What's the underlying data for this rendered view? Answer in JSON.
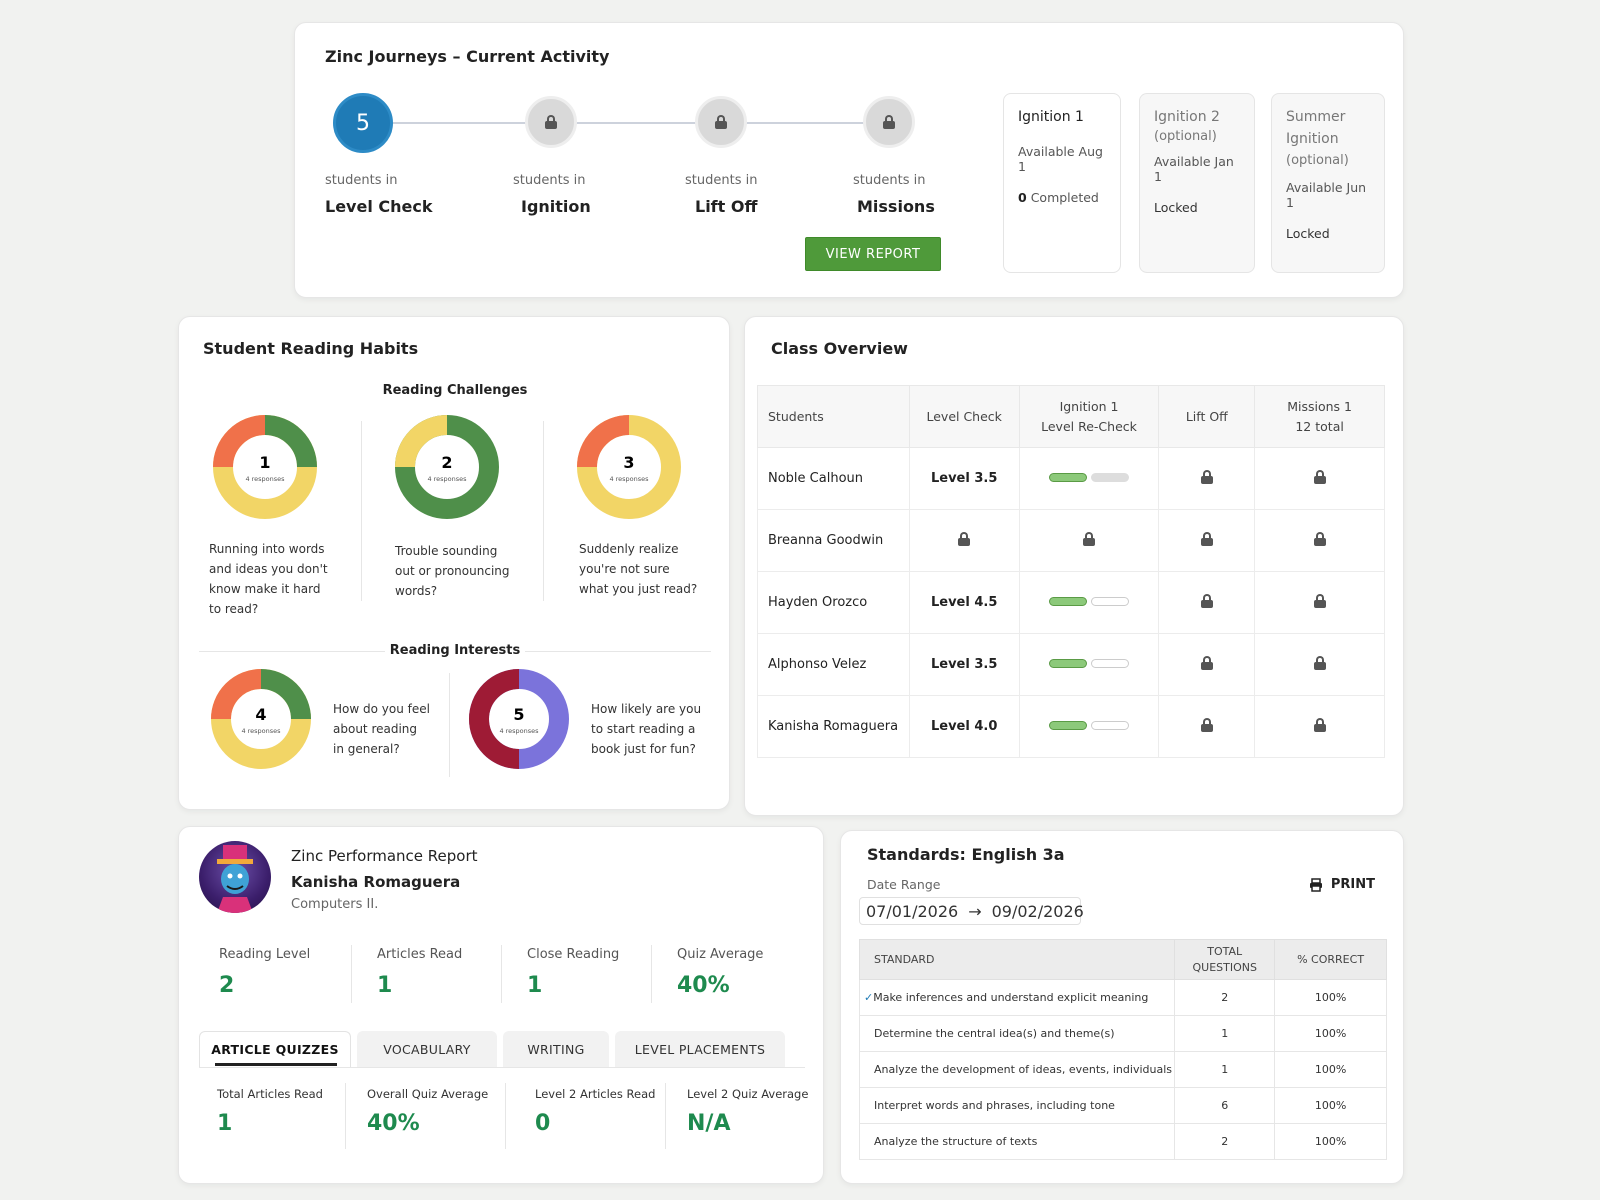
{
  "journeys": {
    "title": "Zinc Journeys – Current Activity",
    "steps": [
      {
        "count": "5",
        "sub": "students in",
        "name": "Level Check",
        "state": "active"
      },
      {
        "count": "",
        "sub": "students in",
        "name": "Ignition",
        "state": "locked"
      },
      {
        "count": "",
        "sub": "students in",
        "name": "Lift Off",
        "state": "locked"
      },
      {
        "count": "",
        "sub": "students in",
        "name": "Missions",
        "state": "locked"
      }
    ],
    "view_report_label": "VIEW REPORT",
    "ignitions": [
      {
        "title": "Ignition 1",
        "available": "Available Aug 1",
        "status_count": "0",
        "status": "Completed"
      },
      {
        "title_line1": "Ignition 2",
        "title_line2": "(optional)",
        "available": "Available Jan 1",
        "status": "Locked"
      },
      {
        "title_line1": "Summer",
        "title_line2": "Ignition",
        "title_line3": "(optional)",
        "available": "Available Jun 1",
        "status": "Locked"
      }
    ]
  },
  "habits": {
    "title": "Student Reading Habits",
    "challenges_label": "Reading Challenges",
    "interests_label": "Reading Interests",
    "responses_label": "4 responses",
    "colors": {
      "red": "#f0714a",
      "green": "#4f8f4a",
      "yellow": "#f2d566",
      "crimson": "#9e1b35",
      "purple": "#7b73db"
    },
    "questions": [
      {
        "num": "1",
        "lines": [
          "Running into words",
          "and ideas you don't",
          "know make it hard",
          "to read?"
        ]
      },
      {
        "num": "2",
        "lines": [
          "Trouble sounding",
          "out or pronouncing",
          "words?"
        ]
      },
      {
        "num": "3",
        "lines": [
          "Suddenly realize",
          "you're not sure",
          "what you just read?"
        ]
      },
      {
        "num": "4",
        "lines": [
          "How do you feel",
          "about reading",
          "in general?"
        ]
      },
      {
        "num": "5",
        "lines": [
          "How likely are you",
          "to start reading a",
          "book just for fun?"
        ]
      }
    ]
  },
  "overview": {
    "title": "Class Overview",
    "headers": {
      "students": "Students",
      "level_check": "Level Check",
      "ignition_l1": "Ignition 1",
      "ignition_l2": "Level Re-Check",
      "lift_off": "Lift Off",
      "missions_l1": "Missions 1",
      "missions_l2": "12 total"
    },
    "rows": [
      {
        "name": "Noble Calhoun",
        "level": "Level 3.5"
      },
      {
        "name": "Breanna Goodwin",
        "level": ""
      },
      {
        "name": "Hayden Orozco",
        "level": "Level 4.5"
      },
      {
        "name": "Alphonso Velez",
        "level": "Level 3.5"
      },
      {
        "name": "Kanisha Romaguera",
        "level": "Level 4.0"
      }
    ]
  },
  "perf": {
    "title": "Zinc Performance Report",
    "student": "Kanisha Romaguera",
    "course": "Computers II.",
    "stats": [
      {
        "label": "Reading Level",
        "value": "2"
      },
      {
        "label": "Articles Read",
        "value": "1"
      },
      {
        "label": "Close Reading",
        "value": "1"
      },
      {
        "label": "Quiz Average",
        "value": "40%"
      }
    ],
    "tabs": [
      "ARTICLE QUIZZES",
      "VOCABULARY",
      "WRITING",
      "LEVEL PLACEMENTS"
    ],
    "sub_stats": [
      {
        "label": "Total Articles Read",
        "value": "1"
      },
      {
        "label": "Overall Quiz Average",
        "value": "40%"
      },
      {
        "label": "Level 2 Articles Read",
        "value": "0"
      },
      {
        "label": "Level 2 Quiz Average",
        "value": "N/A"
      }
    ]
  },
  "standards": {
    "title": "Standards: English 3a",
    "date_range_label": "Date Range",
    "date_from": "07/01/2026",
    "date_to": "09/02/2026",
    "print_label": "PRINT",
    "headers": {
      "standard": "STANDARD",
      "total_l1": "TOTAL",
      "total_l2": "QUESTIONS",
      "correct": "% CORRECT"
    },
    "rows": [
      {
        "standard": "Make inferences and understand explicit meaning",
        "total": "2",
        "correct": "100%"
      },
      {
        "standard": "Determine the central idea(s) and theme(s)",
        "total": "1",
        "correct": "100%"
      },
      {
        "standard": "Analyze the development of ideas, events, individuals",
        "total": "1",
        "correct": "100%"
      },
      {
        "standard": "Interpret words and phrases, including tone",
        "total": "6",
        "correct": "100%"
      },
      {
        "standard": "Analyze the structure of texts",
        "total": "2",
        "correct": "100%"
      }
    ]
  }
}
